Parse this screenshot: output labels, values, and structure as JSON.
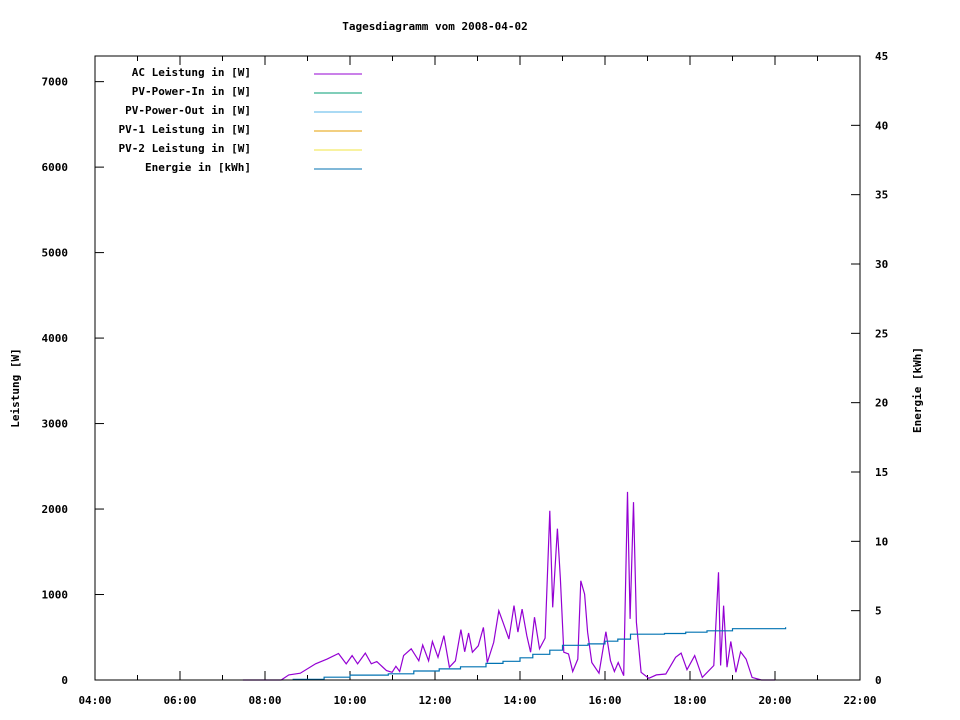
{
  "chart_data": {
    "type": "line",
    "title": "Tagesdiagramm vom 2008-04-02",
    "xlabel": "",
    "ylabel": "Leistung [W]",
    "y2label": "Energie [kWh]",
    "xlim": [
      4,
      22
    ],
    "ylim": [
      0,
      7300
    ],
    "y2lim": [
      0,
      45
    ],
    "x_ticks": [
      "04:00",
      "06:00",
      "08:00",
      "10:00",
      "12:00",
      "14:00",
      "16:00",
      "18:00",
      "20:00",
      "22:00"
    ],
    "y_ticks": [
      "0",
      "1000",
      "2000",
      "3000",
      "4000",
      "5000",
      "6000",
      "7000"
    ],
    "y2_ticks": [
      "0",
      "5",
      "10",
      "15",
      "20",
      "25",
      "30",
      "35",
      "40",
      "45"
    ],
    "grid": false,
    "legend_position": "top-left",
    "series": [
      {
        "name": "AC Leistung in [W]",
        "color": "#9400d3",
        "axis": "left",
        "x": [
          7.48,
          8.38,
          8.56,
          8.83,
          9.19,
          9.46,
          9.73,
          9.91,
          10.05,
          10.18,
          10.36,
          10.5,
          10.63,
          10.86,
          10.99,
          11.08,
          11.17,
          11.26,
          11.44,
          11.62,
          11.71,
          11.85,
          11.94,
          12.07,
          12.21,
          12.34,
          12.48,
          12.61,
          12.7,
          12.79,
          12.88,
          13.02,
          13.14,
          13.23,
          13.38,
          13.5,
          13.6,
          13.74,
          13.86,
          13.95,
          14.05,
          14.16,
          14.25,
          14.34,
          14.46,
          14.59,
          14.7,
          14.77,
          14.88,
          14.95,
          15.03,
          15.14,
          15.24,
          15.36,
          15.43,
          15.52,
          15.59,
          15.69,
          15.86,
          16.02,
          16.13,
          16.22,
          16.31,
          16.44,
          16.53,
          16.59,
          16.67,
          16.74,
          16.85,
          17.03,
          17.21,
          17.43,
          17.66,
          17.79,
          17.93,
          18.11,
          18.29,
          18.56,
          18.67,
          18.72,
          18.79,
          18.87,
          18.96,
          19.08,
          19.19,
          19.32,
          19.46,
          19.68,
          20.0
        ],
        "y": [
          0,
          0,
          60,
          80,
          190,
          245,
          310,
          190,
          285,
          190,
          315,
          190,
          215,
          110,
          90,
          160,
          100,
          285,
          365,
          225,
          410,
          225,
          450,
          265,
          520,
          150,
          225,
          590,
          330,
          550,
          325,
          400,
          615,
          205,
          440,
          810,
          675,
          480,
          870,
          560,
          830,
          520,
          325,
          735,
          365,
          490,
          1980,
          850,
          1770,
          1180,
          325,
          305,
          100,
          245,
          1160,
          1005,
          560,
          205,
          80,
          565,
          225,
          100,
          205,
          50,
          2200,
          715,
          2080,
          675,
          90,
          20,
          60,
          70,
          265,
          315,
          120,
          285,
          30,
          170,
          1260,
          170,
          870,
          150,
          450,
          90,
          330,
          245,
          30,
          0,
          0
        ]
      },
      {
        "name": "PV-Power-In in [W]",
        "color": "#009e73",
        "axis": "left",
        "x": [],
        "y": []
      },
      {
        "name": "PV-Power-Out in [W]",
        "color": "#56b4e9",
        "axis": "left",
        "x": [],
        "y": []
      },
      {
        "name": "PV-1 Leistung in [W]",
        "color": "#e69f00",
        "axis": "left",
        "x": [],
        "y": []
      },
      {
        "name": "PV-2 Leistung in [W]",
        "color": "#f0e442",
        "axis": "left",
        "x": [],
        "y": []
      },
      {
        "name": "Energie in [kWh]",
        "color": "#0072b2",
        "axis": "right",
        "step": true,
        "x": [
          8.65,
          9.39,
          10.0,
          10.9,
          11.5,
          12.1,
          12.6,
          13.2,
          13.6,
          14.0,
          14.3,
          14.7,
          15.0,
          15.6,
          16.0,
          16.3,
          16.6,
          17.4,
          17.9,
          18.4,
          19.0,
          20.25
        ],
        "y": [
          0.05,
          0.2,
          0.35,
          0.45,
          0.65,
          0.8,
          0.95,
          1.2,
          1.35,
          1.6,
          1.85,
          2.15,
          2.5,
          2.6,
          2.8,
          2.95,
          3.3,
          3.35,
          3.45,
          3.55,
          3.7,
          3.8
        ]
      }
    ]
  }
}
